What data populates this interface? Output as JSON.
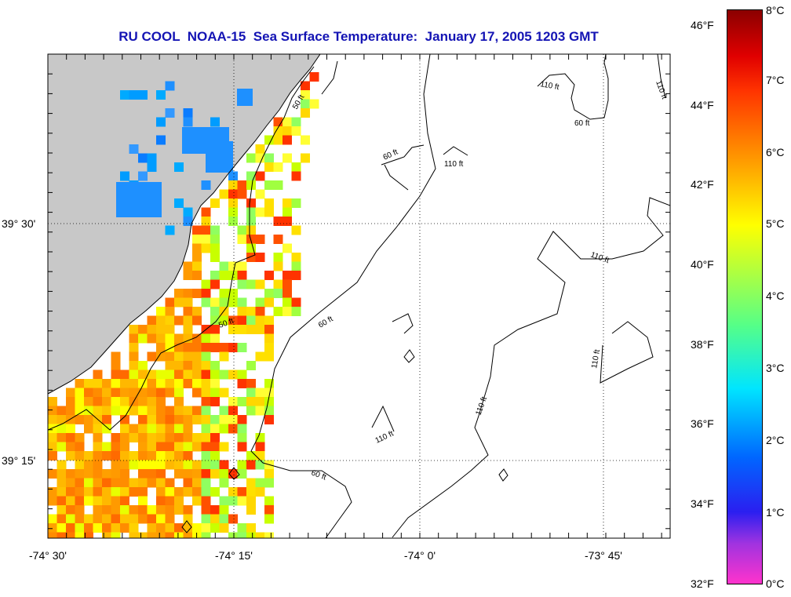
{
  "title": "RU COOL  NOAA-15  Sea Surface Temperature:  January 17, 2005 1203 GMT",
  "axes": {
    "x_ticks": [
      "-74° 30'",
      "-74° 15'",
      "-74° 0'",
      "-73° 45'"
    ],
    "y_ticks": [
      "39° 30'",
      "39° 15'"
    ]
  },
  "contours": {
    "labels": [
      "50 ft",
      "60 ft",
      "110 ft"
    ]
  },
  "colorbar": {
    "fahrenheit": [
      "46°F",
      "44°F",
      "42°F",
      "40°F",
      "38°F",
      "36°F",
      "34°F",
      "32°F"
    ],
    "celsius": [
      "8°C",
      "7°C",
      "6°C",
      "5°C",
      "4°C",
      "3°C",
      "2°C",
      "1°C",
      "0°C"
    ]
  },
  "colors": {
    "title": "#1414b4",
    "land": "#c8c8c8",
    "water_background": "#ffffff"
  }
}
